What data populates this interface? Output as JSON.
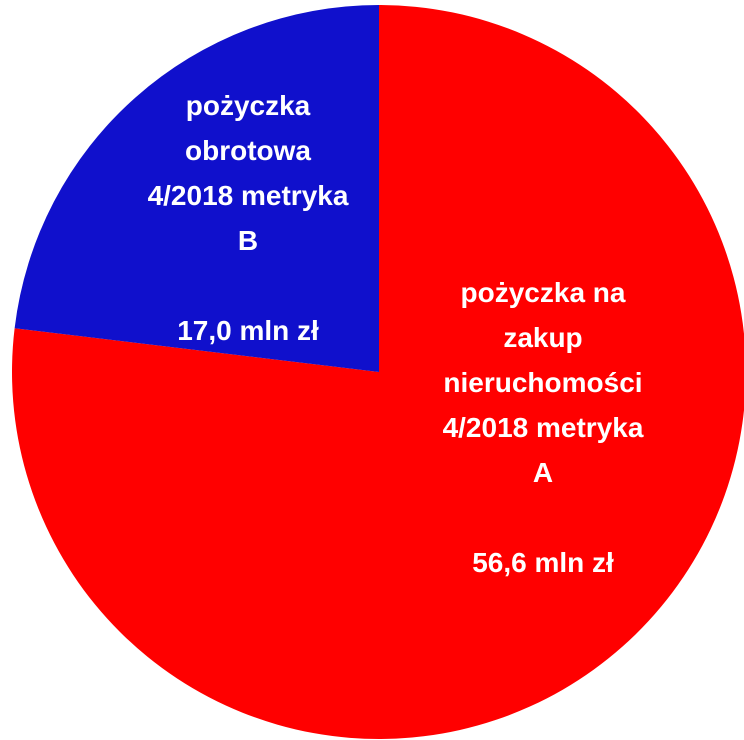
{
  "chart_data": {
    "type": "pie",
    "categories": [
      "pożyczka na\nzakup\nnieruchomości\n4/2018 metryka\nA",
      "pożyczka\nobrotowa\n4/2018 metryka\nB"
    ],
    "values": [
      56.6,
      17.0
    ],
    "value_labels": [
      "56,6 mln zł",
      "17,0 mln zł"
    ],
    "colors": [
      "#ff0000",
      "#1010cc"
    ]
  }
}
